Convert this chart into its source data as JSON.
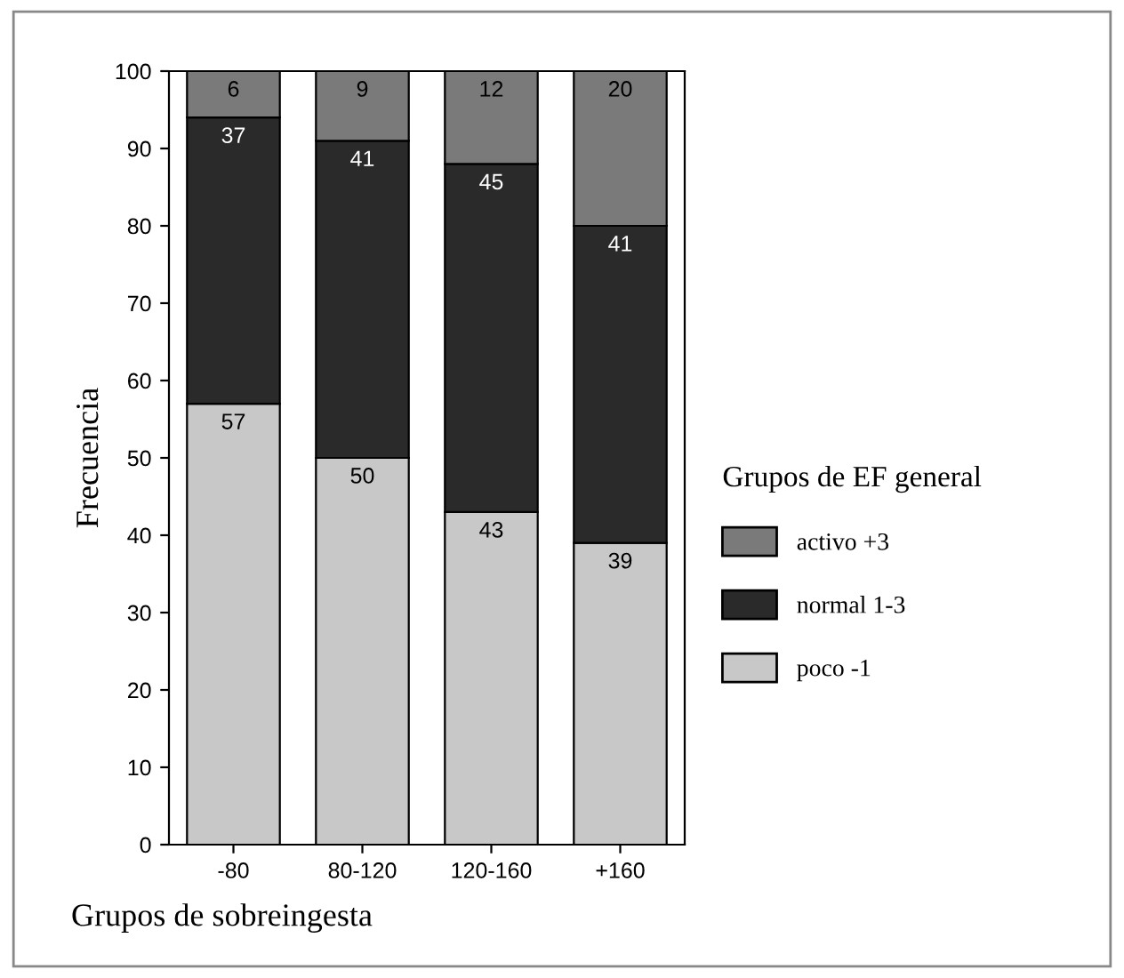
{
  "chart_data": {
    "type": "bar",
    "stacked": true,
    "xlabel": "Grupos de sobreingesta",
    "ylabel": "Frecuencia",
    "legend_title": "Grupos de EF general",
    "legend": "right",
    "categories": [
      "-80",
      "80-120",
      "120-160",
      "+160"
    ],
    "series": [
      {
        "name": "poco -1",
        "color": "#c8c8c8",
        "values": [
          57,
          50,
          43,
          39
        ]
      },
      {
        "name": "normal 1-3",
        "color": "#2a2a2a",
        "values": [
          37,
          41,
          45,
          41
        ]
      },
      {
        "name": "activo +3",
        "color": "#7a7a7a",
        "values": [
          6,
          9,
          12,
          20
        ]
      }
    ],
    "ylim": [
      0,
      100
    ],
    "yticks": [
      0,
      10,
      20,
      30,
      40,
      50,
      60,
      70,
      80,
      90,
      100
    ],
    "data_labels": true,
    "grid": false
  }
}
